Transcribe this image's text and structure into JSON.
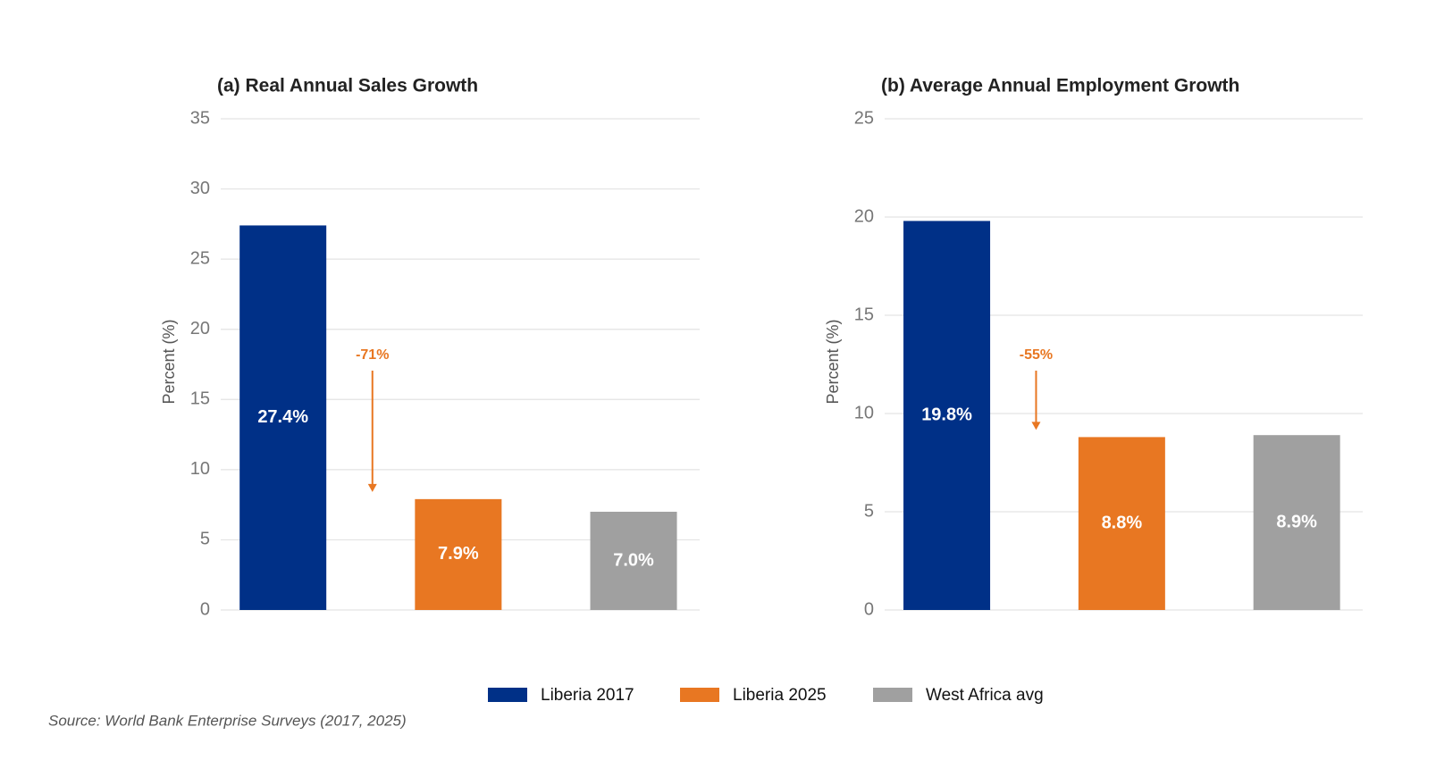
{
  "chart_data": [
    {
      "type": "bar",
      "title": "(a)  Real Annual Sales Growth",
      "y_label": "Percent (%)",
      "categories": [
        null
      ],
      "series": [
        {
          "color": "#003087",
          "values": [
            27.4
          ],
          "value_labels": [
            "27.4%"
          ]
        },
        {
          "color": "#e87722",
          "values": [
            7.9
          ],
          "value_labels": [
            "7.9%"
          ]
        },
        {
          "color": "#a0a0a0",
          "values": [
            7.0
          ],
          "value_labels": [
            "7.0%"
          ]
        }
      ],
      "ylim": [
        0,
        35
      ],
      "yticks": [
        0,
        5,
        10,
        15,
        20,
        25,
        30,
        35
      ],
      "grid": true,
      "annotations": [
        {
          "text": "-71%",
          "color": "#e87722"
        }
      ]
    },
    {
      "type": "bar",
      "title": "(b)  Average Annual Employment Growth",
      "y_label": "Percent (%)",
      "categories": [
        null
      ],
      "series": [
        {
          "color": "#003087",
          "values": [
            19.8
          ],
          "value_labels": [
            "19.8%"
          ]
        },
        {
          "color": "#e87722",
          "values": [
            8.8
          ],
          "value_labels": [
            "8.8%"
          ]
        },
        {
          "color": "#a0a0a0",
          "values": [
            8.9
          ],
          "value_labels": [
            "8.9%"
          ]
        }
      ],
      "ylim": [
        0,
        25
      ],
      "yticks": [
        0,
        5,
        10,
        15,
        20,
        25
      ],
      "grid": true,
      "annotations": [
        {
          "text": "-55%",
          "color": "#e87722"
        }
      ]
    }
  ],
  "legend": [
    {
      "name": "Liberia 2017",
      "color": "#003087"
    },
    {
      "name": "Liberia 2025",
      "color": "#e87722"
    },
    {
      "name": "West Africa avg",
      "color": "#a0a0a0"
    }
  ],
  "source": "Source: World Bank Enterprise Surveys (2017, 2025)"
}
